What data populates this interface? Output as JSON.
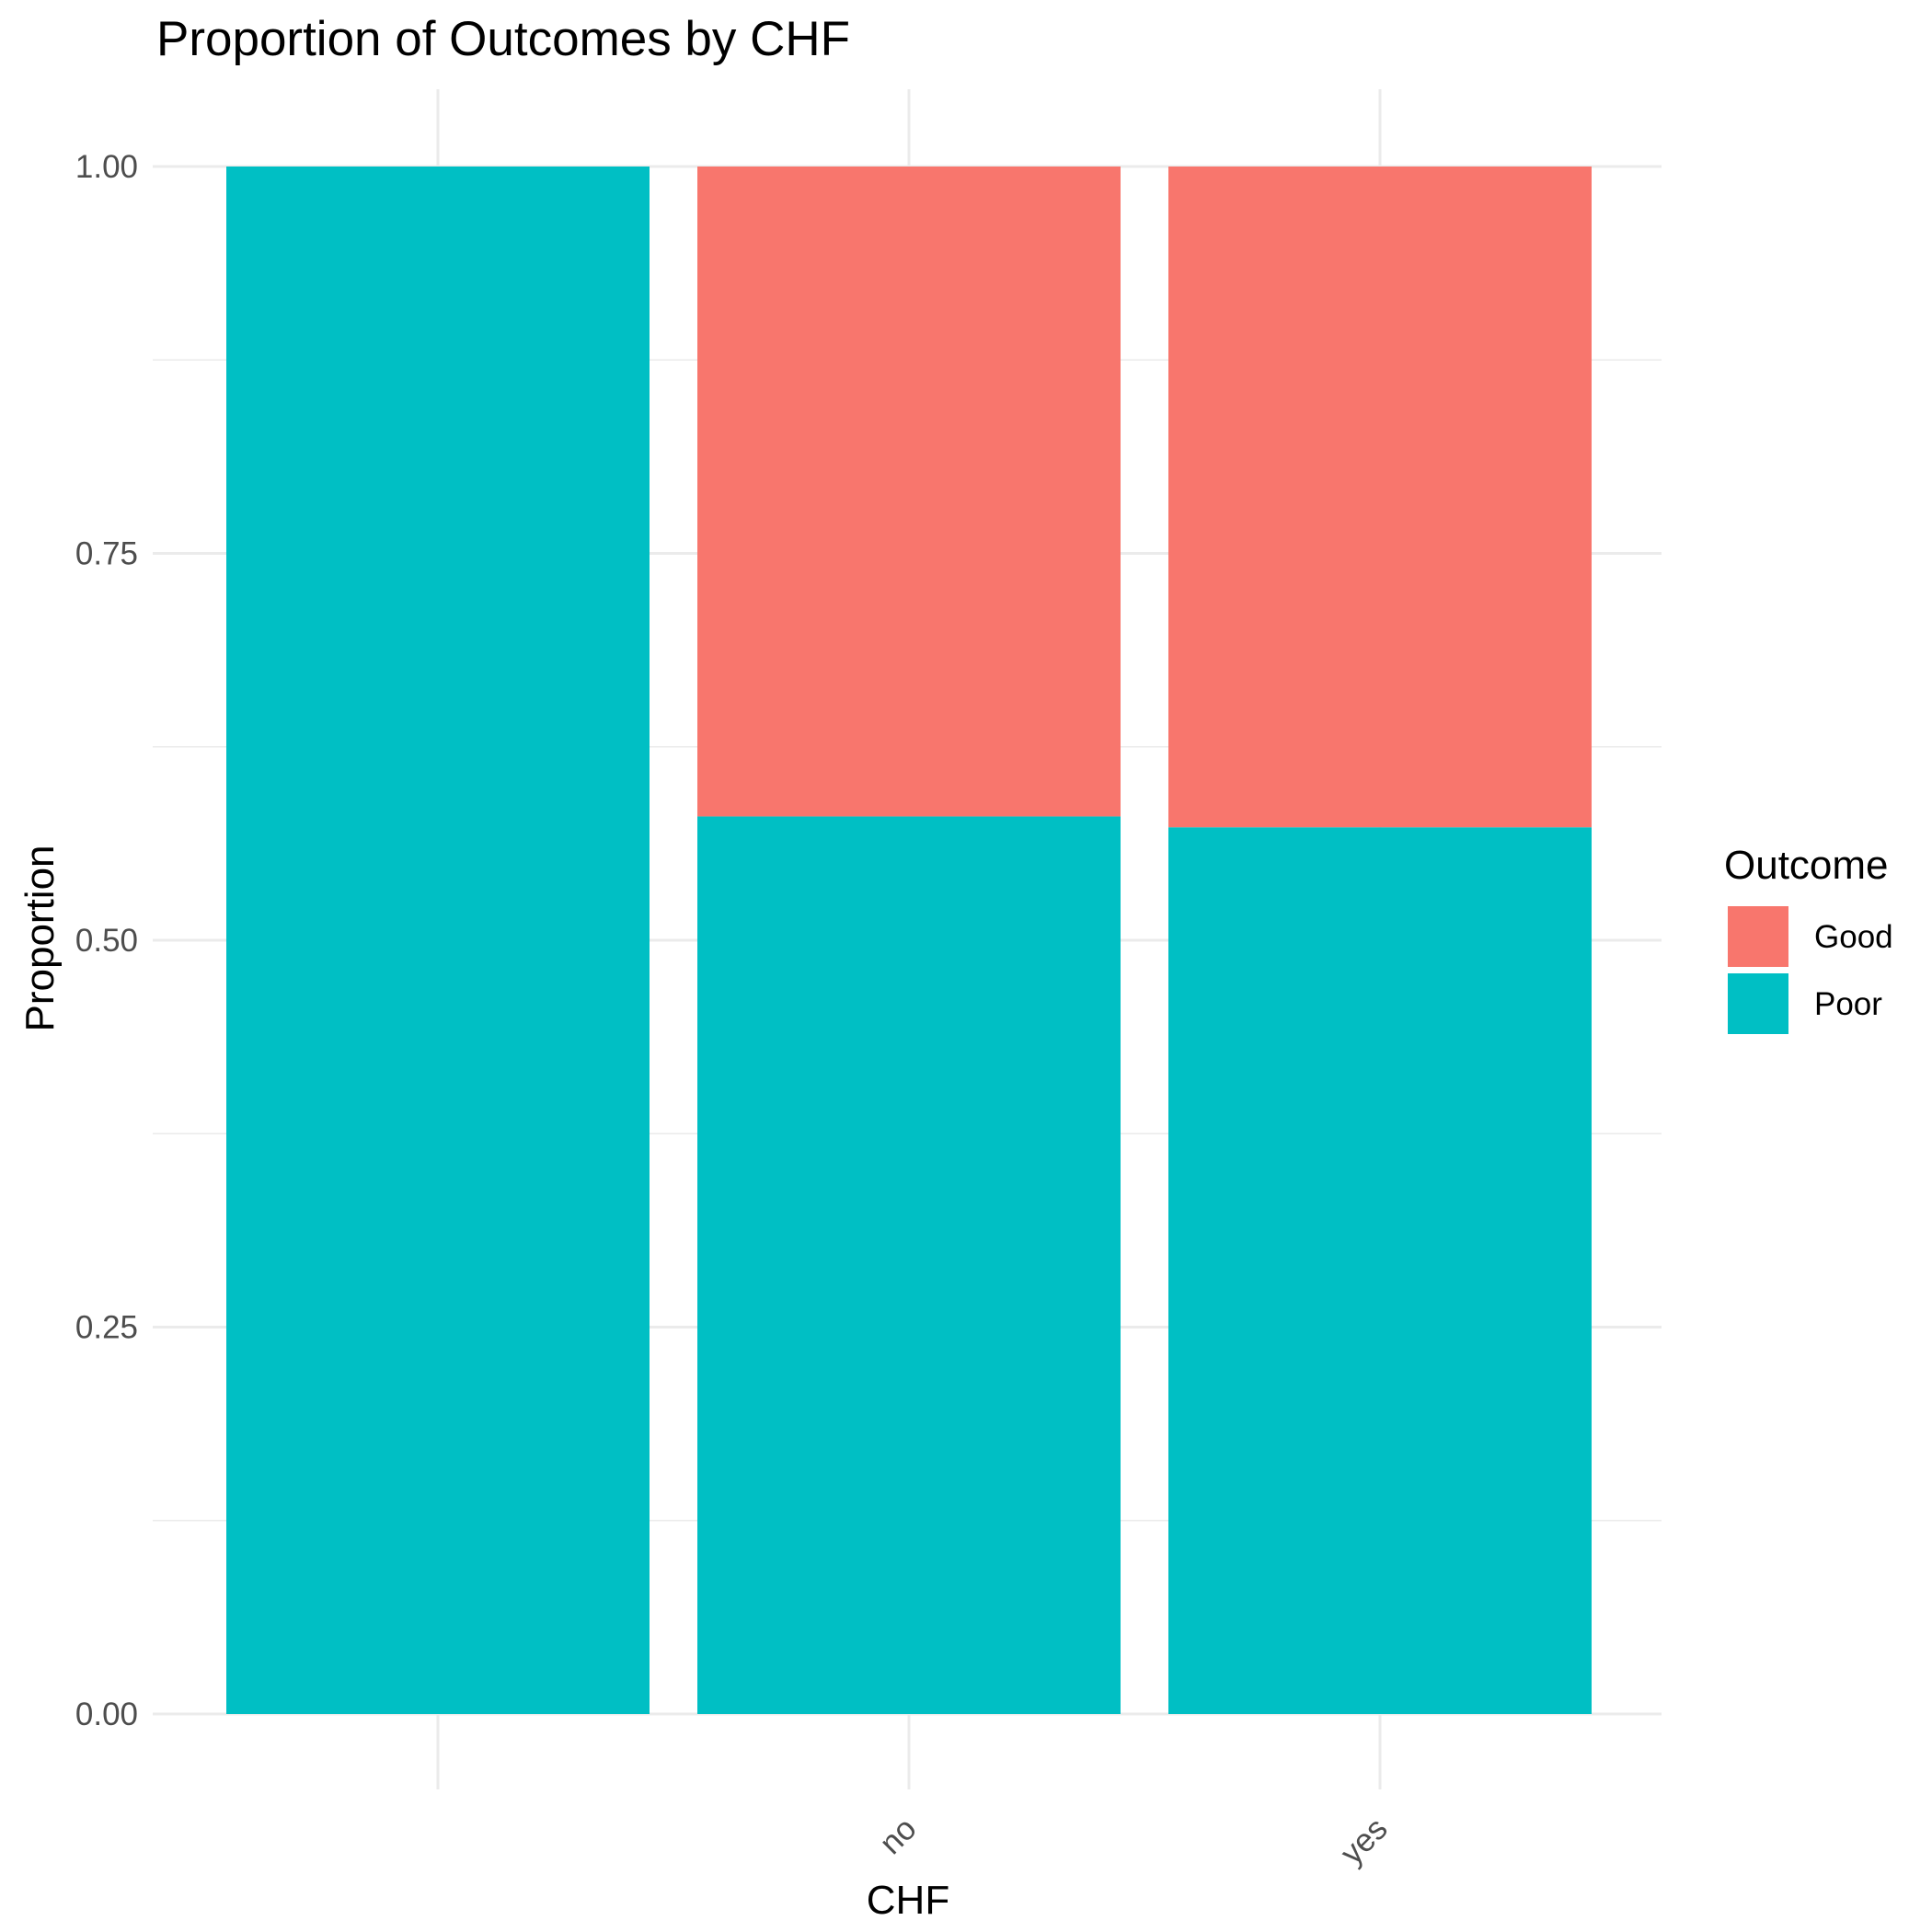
{
  "chart_data": {
    "type": "bar",
    "stacked": true,
    "title": "Proportion of Outcomes by CHF",
    "xlabel": "CHF",
    "ylabel": "Proportion",
    "categories": [
      "",
      "no",
      "yes"
    ],
    "series": [
      {
        "name": "Good",
        "color": "#F8766D",
        "values": [
          0.0,
          0.42,
          0.427
        ]
      },
      {
        "name": "Poor",
        "color": "#00BFC4",
        "values": [
          1.0,
          0.58,
          0.573
        ]
      }
    ],
    "ylim": [
      0,
      1
    ],
    "yticks": [
      "0.00",
      "0.25",
      "0.50",
      "0.75",
      "1.00"
    ],
    "yminor": [
      0.125,
      0.375,
      0.625,
      0.875
    ],
    "grid": true,
    "legend": {
      "title": "Outcome",
      "position": "right"
    }
  }
}
